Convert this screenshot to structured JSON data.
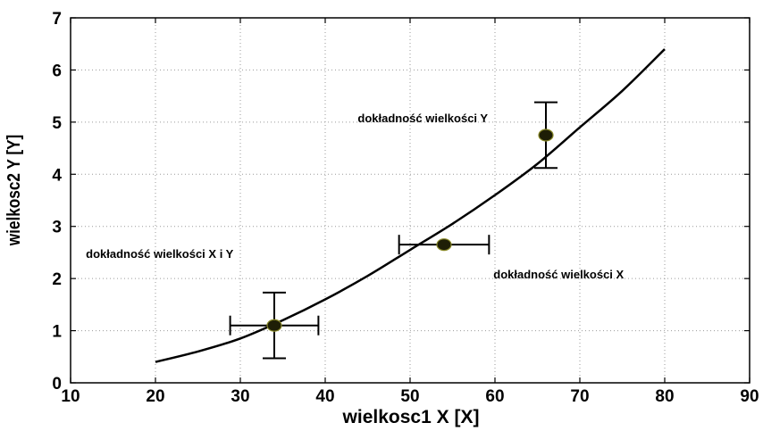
{
  "chart_data": {
    "type": "scatter",
    "title": "",
    "xlabel": "wielkosc1 X [X]",
    "ylabel": "wielkosc2 Y [Y]",
    "xlim": [
      10,
      90
    ],
    "ylim": [
      0,
      7
    ],
    "xticks": [
      10,
      20,
      30,
      40,
      50,
      60,
      70,
      80,
      90
    ],
    "yticks": [
      0,
      1,
      2,
      3,
      4,
      5,
      6,
      7
    ],
    "grid": true,
    "curve": {
      "x": [
        20,
        25,
        30,
        35,
        40,
        45,
        50,
        55,
        60,
        65,
        70,
        75,
        80
      ],
      "y": [
        0.4,
        0.6,
        0.85,
        1.2,
        1.6,
        2.05,
        2.55,
        3.05,
        3.6,
        4.2,
        4.9,
        5.6,
        6.4
      ]
    },
    "points": [
      {
        "x": 34,
        "y": 1.1,
        "xerr": 5.2,
        "yerr": 0.63
      },
      {
        "x": 54,
        "y": 2.65,
        "xerr": 5.3,
        "yerr": 0
      },
      {
        "x": 66,
        "y": 4.75,
        "xerr": 0,
        "yerr": 0.63
      }
    ],
    "annotations": [
      {
        "text": "dokładność wielkości X i Y",
        "x": 20.5,
        "y": 2.4
      },
      {
        "text": "dokładność wielkości X",
        "x": 67.5,
        "y": 2.0
      },
      {
        "text": "dokładność wielkości Y",
        "x": 51.5,
        "y": 5.0
      }
    ],
    "colors": {
      "marker_fill": "#1e1e06",
      "marker_edge": "#8a8a2a",
      "line": "#000000"
    }
  }
}
